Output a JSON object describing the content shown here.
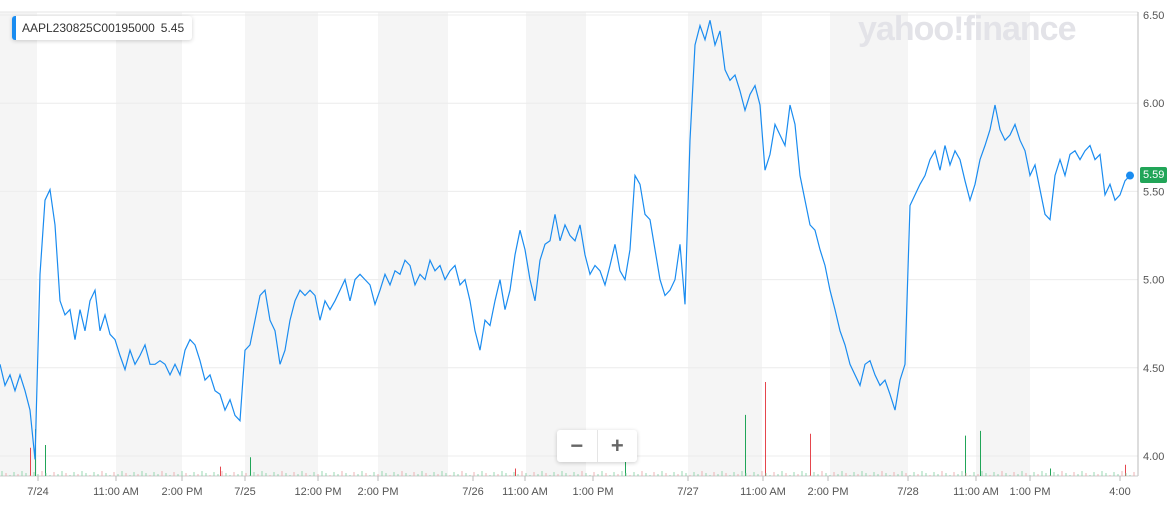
{
  "legend": {
    "symbol": "AAPL230825C00195000",
    "value": "5.45",
    "color": "#1a8cf0"
  },
  "watermark": "yahoo!finance",
  "zoom_controls": {
    "minus": "−",
    "plus": "+"
  },
  "current_price": {
    "label": "5.59",
    "color": "#21a558"
  },
  "chart_data": {
    "type": "line",
    "y_ticks": [
      "6.50",
      "6.00",
      "5.50",
      "5.00",
      "4.50",
      "4.00"
    ],
    "ylim": [
      3.9,
      6.53
    ],
    "x_ticks": [
      "7/24",
      "11:00 AM",
      "2:00 PM",
      "7/25",
      "12:00 PM",
      "2:00 PM",
      "7/26",
      "11:00 AM",
      "1:00 PM",
      "7/27",
      "11:00 AM",
      "2:00 PM",
      "7/28",
      "11:00 AM",
      "1:00 PM",
      "4:00"
    ],
    "grid": true,
    "line_color": "#1a8cf0",
    "up_color": "#21a558",
    "down_color": "#e5464d",
    "series": [
      {
        "values": [
          4.52,
          4.4,
          4.46,
          4.37,
          4.46,
          4.37,
          4.26,
          3.98,
          5.03,
          5.45,
          5.51,
          5.31,
          4.88,
          4.8,
          4.83,
          4.66,
          4.83,
          4.71,
          4.88,
          4.94,
          4.71,
          4.8,
          4.69,
          4.66,
          4.57,
          4.49,
          4.6,
          4.52,
          4.57,
          4.63,
          4.52,
          4.52,
          4.54,
          4.52,
          4.46,
          4.52,
          4.46,
          4.6,
          4.66,
          4.63,
          4.54,
          4.43,
          4.46,
          4.37,
          4.35,
          4.26,
          4.32,
          4.23,
          4.2,
          4.6,
          4.63,
          4.77,
          4.91,
          4.94,
          4.77,
          4.71,
          4.52,
          4.6,
          4.77,
          4.88,
          4.94,
          4.91,
          4.94,
          4.91,
          4.77,
          4.88,
          4.83,
          4.88,
          4.94,
          5.0,
          4.88,
          5.0,
          5.03,
          5.0,
          4.97,
          4.86,
          4.94,
          5.03,
          4.97,
          5.05,
          5.03,
          5.11,
          5.08,
          4.97,
          5.03,
          5.0,
          5.11,
          5.05,
          5.08,
          5.0,
          5.05,
          5.08,
          4.97,
          5.0,
          4.88,
          4.71,
          4.6,
          4.77,
          4.74,
          4.88,
          5.0,
          4.83,
          4.94,
          5.14,
          5.28,
          5.17,
          5.0,
          4.88,
          5.11,
          5.2,
          5.22,
          5.37,
          5.22,
          5.31,
          5.25,
          5.22,
          5.31,
          5.14,
          5.03,
          5.08,
          5.05,
          4.97,
          5.08,
          5.2,
          5.05,
          5.0,
          5.17,
          5.59,
          5.54,
          5.37,
          5.34,
          5.17,
          5.0,
          4.91,
          4.94,
          5.0,
          5.2,
          4.86,
          5.79,
          6.33,
          6.44,
          6.36,
          6.47,
          6.33,
          6.41,
          6.19,
          6.13,
          6.16,
          6.07,
          5.96,
          6.05,
          6.1,
          5.99,
          5.62,
          5.71,
          5.88,
          5.82,
          5.76,
          5.99,
          5.88,
          5.59,
          5.45,
          5.31,
          5.28,
          5.17,
          5.08,
          4.94,
          4.83,
          4.71,
          4.63,
          4.52,
          4.46,
          4.4,
          4.52,
          4.54,
          4.46,
          4.4,
          4.43,
          4.35,
          4.26,
          4.43,
          4.52,
          5.42,
          5.48,
          5.54,
          5.59,
          5.68,
          5.73,
          5.62,
          5.76,
          5.65,
          5.73,
          5.68,
          5.56,
          5.45,
          5.54,
          5.68,
          5.76,
          5.85,
          5.99,
          5.85,
          5.79,
          5.82,
          5.88,
          5.79,
          5.73,
          5.59,
          5.65,
          5.51,
          5.37,
          5.34,
          5.59,
          5.68,
          5.59,
          5.71,
          5.73,
          5.68,
          5.73,
          5.76,
          5.68,
          5.71,
          5.48,
          5.54,
          5.45,
          5.48,
          5.56,
          5.59
        ]
      }
    ],
    "volume_spikes": [
      {
        "index": 6,
        "pct": 30,
        "dir": "down"
      },
      {
        "index": 7,
        "pct": 50,
        "dir": "up"
      },
      {
        "index": 9,
        "pct": 33,
        "dir": "up"
      },
      {
        "index": 50,
        "pct": 20,
        "dir": "up"
      },
      {
        "index": 44,
        "pct": 10,
        "dir": "down"
      },
      {
        "index": 125,
        "pct": 15,
        "dir": "up"
      },
      {
        "index": 149,
        "pct": 65,
        "dir": "up"
      },
      {
        "index": 153,
        "pct": 100,
        "dir": "down"
      },
      {
        "index": 162,
        "pct": 45,
        "dir": "down"
      },
      {
        "index": 193,
        "pct": 43,
        "dir": "up"
      },
      {
        "index": 196,
        "pct": 48,
        "dir": "up"
      },
      {
        "index": 225,
        "pct": 12,
        "dir": "down"
      },
      {
        "index": 103,
        "pct": 8,
        "dir": "down"
      },
      {
        "index": 210,
        "pct": 8,
        "dir": "up"
      }
    ]
  }
}
